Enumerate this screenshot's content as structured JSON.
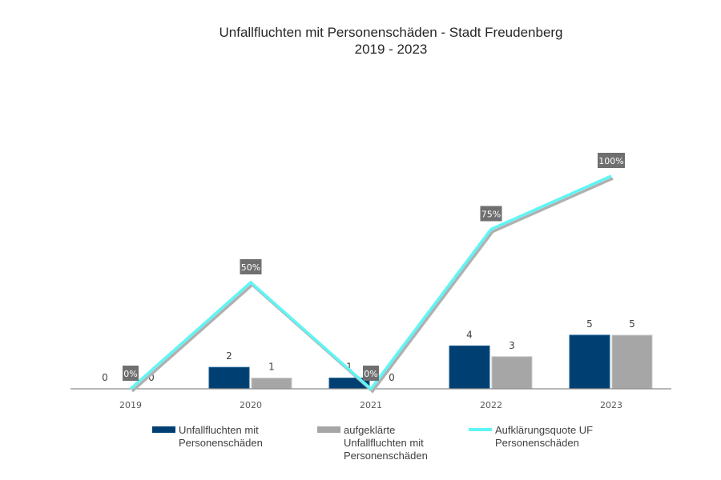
{
  "chart_data": {
    "type": "bar+line",
    "title": "Unfallfluchten mit Personenschäden - Stadt Freudenberg",
    "subtitle": "2019 - 2023",
    "categories": [
      "2019",
      "2020",
      "2021",
      "2022",
      "2023"
    ],
    "series": [
      {
        "name": "Unfallfluchten mit Personenschäden",
        "type": "bar",
        "color": "#003f72",
        "values": [
          0,
          2,
          1,
          4,
          5
        ],
        "labels": [
          "0",
          "2",
          "1",
          "4",
          "5"
        ]
      },
      {
        "name": "aufgeklärte Unfallfluchten mit Personenschäden",
        "type": "bar",
        "color": "#a6a6a6",
        "values": [
          0,
          1,
          0,
          3,
          5
        ],
        "labels": [
          "0",
          "1",
          "0",
          "3",
          "5"
        ]
      },
      {
        "name": "Aufklärungsquote UF Personenschäden",
        "type": "line",
        "color": "#5ff5f5",
        "axis": "secondary",
        "values": [
          0,
          50,
          0,
          75,
          100
        ],
        "labels": [
          "0%",
          "50%",
          "0%",
          "75%",
          "100%"
        ]
      }
    ],
    "legend": {
      "position": "bottom",
      "entries": [
        [
          "Unfallfluchten mit",
          "Personenschäden"
        ],
        [
          "aufgeklärte",
          "Unfallfluchten mit",
          "Personenschäden"
        ],
        [
          "Aufklärungsquote UF",
          "Personenschäden"
        ]
      ]
    },
    "ylim": [
      0,
      20
    ],
    "y2lim": [
      0,
      100
    ],
    "grid": false,
    "axes_visible": false,
    "point_label_bg": "#6f6f6f"
  }
}
